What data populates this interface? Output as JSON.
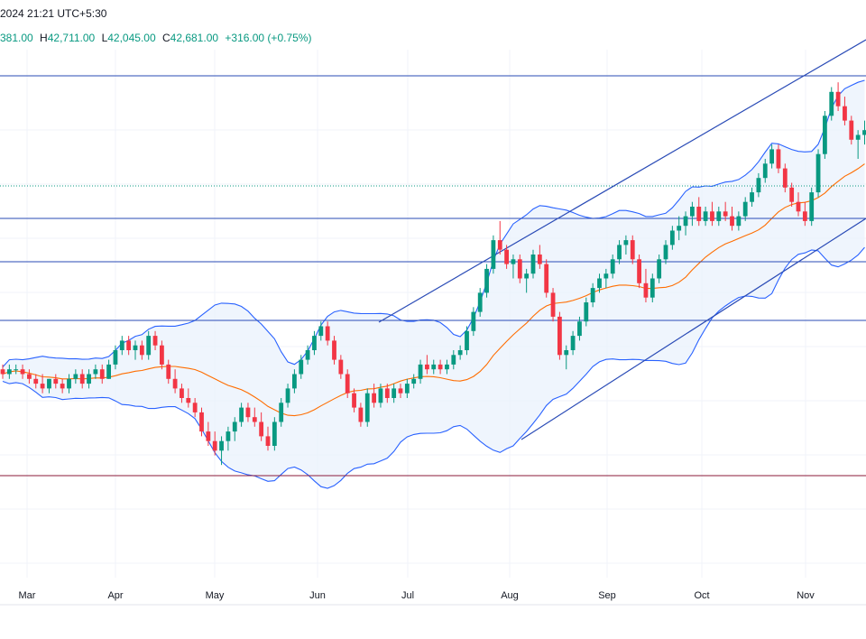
{
  "header": {
    "datetime": "2024 21:21 UTC+5:30"
  },
  "ohlc": {
    "open_value": "381.00",
    "high_label": "H",
    "high_value": "42,711.00",
    "low_label": "L",
    "low_value": "42,045.00",
    "close_label": "C",
    "close_value": "42,681.00",
    "change": "+316.00 (+0.75%)"
  },
  "colors": {
    "up": "#089981",
    "down": "#f23645",
    "band": "#2962ff",
    "band_fill": "#e8f1fc",
    "ma": "#ff6d00",
    "hline": "#2a4bb6",
    "support": "#8b1a3a",
    "grid": "#f0f3fa"
  },
  "chart_data": {
    "type": "candlestick",
    "x_axis_labels": [
      "Mar",
      "Apr",
      "May",
      "Jun",
      "Jul",
      "Aug",
      "Sep",
      "Oct",
      "Nov"
    ],
    "horizontal_levels": [
      84,
      242,
      290,
      355
    ],
    "dotted_level": 206,
    "support_level": 527,
    "grid": true,
    "indicators": [
      "Bollinger Bands",
      "Moving Average"
    ],
    "trend_channel": {
      "upper": [
        [
          420,
          357
        ],
        [
          960,
          44
        ]
      ],
      "lower": [
        [
          578,
          487
        ],
        [
          960,
          242
        ]
      ]
    },
    "candles": [
      [
        0.36,
        0.37,
        0.34,
        0.35
      ],
      [
        0.35,
        0.37,
        0.34,
        0.36
      ],
      [
        0.36,
        0.37,
        0.35,
        0.36
      ],
      [
        0.36,
        0.37,
        0.34,
        0.35
      ],
      [
        0.35,
        0.36,
        0.33,
        0.34
      ],
      [
        0.34,
        0.35,
        0.32,
        0.33
      ],
      [
        0.33,
        0.35,
        0.31,
        0.32
      ],
      [
        0.32,
        0.34,
        0.31,
        0.34
      ],
      [
        0.34,
        0.35,
        0.32,
        0.33
      ],
      [
        0.33,
        0.34,
        0.31,
        0.32
      ],
      [
        0.32,
        0.35,
        0.31,
        0.34
      ],
      [
        0.34,
        0.36,
        0.33,
        0.35
      ],
      [
        0.35,
        0.36,
        0.32,
        0.33
      ],
      [
        0.33,
        0.36,
        0.32,
        0.35
      ],
      [
        0.35,
        0.37,
        0.34,
        0.36
      ],
      [
        0.36,
        0.37,
        0.33,
        0.34
      ],
      [
        0.34,
        0.38,
        0.34,
        0.37
      ],
      [
        0.37,
        0.41,
        0.36,
        0.4
      ],
      [
        0.4,
        0.43,
        0.39,
        0.42
      ],
      [
        0.42,
        0.43,
        0.39,
        0.4
      ],
      [
        0.4,
        0.42,
        0.38,
        0.41
      ],
      [
        0.41,
        0.42,
        0.38,
        0.39
      ],
      [
        0.39,
        0.44,
        0.38,
        0.43
      ],
      [
        0.43,
        0.44,
        0.4,
        0.41
      ],
      [
        0.41,
        0.42,
        0.36,
        0.37
      ],
      [
        0.37,
        0.38,
        0.33,
        0.34
      ],
      [
        0.34,
        0.36,
        0.31,
        0.32
      ],
      [
        0.32,
        0.33,
        0.29,
        0.3
      ],
      [
        0.3,
        0.32,
        0.28,
        0.29
      ],
      [
        0.29,
        0.3,
        0.26,
        0.27
      ],
      [
        0.27,
        0.28,
        0.22,
        0.23
      ],
      [
        0.23,
        0.25,
        0.2,
        0.21
      ],
      [
        0.21,
        0.23,
        0.18,
        0.19
      ],
      [
        0.19,
        0.22,
        0.16,
        0.21
      ],
      [
        0.21,
        0.24,
        0.19,
        0.23
      ],
      [
        0.23,
        0.26,
        0.21,
        0.25
      ],
      [
        0.25,
        0.29,
        0.24,
        0.28
      ],
      [
        0.28,
        0.29,
        0.25,
        0.26
      ],
      [
        0.26,
        0.28,
        0.24,
        0.25
      ],
      [
        0.25,
        0.27,
        0.21,
        0.22
      ],
      [
        0.22,
        0.24,
        0.19,
        0.2
      ],
      [
        0.2,
        0.26,
        0.19,
        0.25
      ],
      [
        0.25,
        0.3,
        0.24,
        0.29
      ],
      [
        0.29,
        0.33,
        0.28,
        0.32
      ],
      [
        0.32,
        0.36,
        0.31,
        0.35
      ],
      [
        0.35,
        0.39,
        0.34,
        0.38
      ],
      [
        0.38,
        0.41,
        0.37,
        0.4
      ],
      [
        0.4,
        0.44,
        0.39,
        0.43
      ],
      [
        0.43,
        0.46,
        0.42,
        0.45
      ],
      [
        0.45,
        0.46,
        0.41,
        0.42
      ],
      [
        0.42,
        0.43,
        0.37,
        0.38
      ],
      [
        0.38,
        0.39,
        0.34,
        0.35
      ],
      [
        0.35,
        0.36,
        0.3,
        0.31
      ],
      [
        0.31,
        0.32,
        0.27,
        0.28
      ],
      [
        0.28,
        0.29,
        0.24,
        0.25
      ],
      [
        0.25,
        0.32,
        0.24,
        0.31
      ],
      [
        0.31,
        0.33,
        0.28,
        0.29
      ],
      [
        0.29,
        0.33,
        0.28,
        0.32
      ],
      [
        0.32,
        0.33,
        0.29,
        0.3
      ],
      [
        0.3,
        0.33,
        0.29,
        0.32
      ],
      [
        0.32,
        0.33,
        0.3,
        0.31
      ],
      [
        0.31,
        0.34,
        0.3,
        0.33
      ],
      [
        0.33,
        0.35,
        0.32,
        0.34
      ],
      [
        0.34,
        0.38,
        0.33,
        0.37
      ],
      [
        0.37,
        0.39,
        0.35,
        0.36
      ],
      [
        0.36,
        0.38,
        0.35,
        0.37
      ],
      [
        0.37,
        0.38,
        0.35,
        0.36
      ],
      [
        0.36,
        0.38,
        0.35,
        0.37
      ],
      [
        0.37,
        0.4,
        0.36,
        0.39
      ],
      [
        0.39,
        0.41,
        0.38,
        0.4
      ],
      [
        0.4,
        0.45,
        0.39,
        0.44
      ],
      [
        0.44,
        0.49,
        0.43,
        0.48
      ],
      [
        0.48,
        0.53,
        0.47,
        0.52
      ],
      [
        0.52,
        0.58,
        0.51,
        0.57
      ],
      [
        0.57,
        0.64,
        0.56,
        0.63
      ],
      [
        0.63,
        0.67,
        0.6,
        0.61
      ],
      [
        0.61,
        0.62,
        0.57,
        0.58
      ],
      [
        0.58,
        0.6,
        0.55,
        0.59
      ],
      [
        0.59,
        0.6,
        0.54,
        0.55
      ],
      [
        0.55,
        0.57,
        0.52,
        0.56
      ],
      [
        0.56,
        0.61,
        0.55,
        0.6
      ],
      [
        0.6,
        0.62,
        0.57,
        0.58
      ],
      [
        0.58,
        0.59,
        0.51,
        0.52
      ],
      [
        0.52,
        0.53,
        0.46,
        0.47
      ],
      [
        0.47,
        0.48,
        0.38,
        0.39
      ],
      [
        0.39,
        0.41,
        0.36,
        0.4
      ],
      [
        0.4,
        0.44,
        0.39,
        0.43
      ],
      [
        0.43,
        0.47,
        0.42,
        0.46
      ],
      [
        0.46,
        0.51,
        0.45,
        0.5
      ],
      [
        0.5,
        0.54,
        0.49,
        0.53
      ],
      [
        0.53,
        0.56,
        0.52,
        0.55
      ],
      [
        0.55,
        0.57,
        0.53,
        0.56
      ],
      [
        0.56,
        0.6,
        0.55,
        0.59
      ],
      [
        0.59,
        0.63,
        0.58,
        0.62
      ],
      [
        0.62,
        0.64,
        0.6,
        0.63
      ],
      [
        0.63,
        0.64,
        0.58,
        0.59
      ],
      [
        0.59,
        0.6,
        0.53,
        0.54
      ],
      [
        0.54,
        0.57,
        0.5,
        0.51
      ],
      [
        0.51,
        0.56,
        0.5,
        0.55
      ],
      [
        0.55,
        0.6,
        0.54,
        0.59
      ],
      [
        0.59,
        0.63,
        0.58,
        0.62
      ],
      [
        0.62,
        0.66,
        0.61,
        0.65
      ],
      [
        0.65,
        0.68,
        0.63,
        0.66
      ],
      [
        0.66,
        0.69,
        0.64,
        0.68
      ],
      [
        0.68,
        0.71,
        0.66,
        0.7
      ],
      [
        0.7,
        0.72,
        0.66,
        0.67
      ],
      [
        0.67,
        0.7,
        0.66,
        0.69
      ],
      [
        0.69,
        0.71,
        0.66,
        0.67
      ],
      [
        0.67,
        0.7,
        0.66,
        0.69
      ],
      [
        0.69,
        0.71,
        0.67,
        0.68
      ],
      [
        0.68,
        0.7,
        0.65,
        0.66
      ],
      [
        0.66,
        0.69,
        0.65,
        0.68
      ],
      [
        0.68,
        0.72,
        0.67,
        0.71
      ],
      [
        0.71,
        0.74,
        0.7,
        0.73
      ],
      [
        0.73,
        0.77,
        0.72,
        0.76
      ],
      [
        0.76,
        0.8,
        0.75,
        0.79
      ],
      [
        0.79,
        0.83,
        0.78,
        0.82
      ],
      [
        0.82,
        0.83,
        0.77,
        0.78
      ],
      [
        0.78,
        0.79,
        0.73,
        0.74
      ],
      [
        0.74,
        0.75,
        0.7,
        0.71
      ],
      [
        0.71,
        0.73,
        0.68,
        0.69
      ],
      [
        0.69,
        0.71,
        0.66,
        0.67
      ],
      [
        0.67,
        0.74,
        0.66,
        0.73
      ],
      [
        0.73,
        0.82,
        0.72,
        0.81
      ],
      [
        0.81,
        0.9,
        0.8,
        0.89
      ],
      [
        0.89,
        0.95,
        0.88,
        0.94
      ],
      [
        0.94,
        0.96,
        0.9,
        0.91
      ],
      [
        0.91,
        0.93,
        0.87,
        0.88
      ],
      [
        0.88,
        0.89,
        0.83,
        0.84
      ],
      [
        0.84,
        0.86,
        0.8,
        0.85
      ],
      [
        0.85,
        0.88,
        0.83,
        0.86
      ]
    ]
  }
}
